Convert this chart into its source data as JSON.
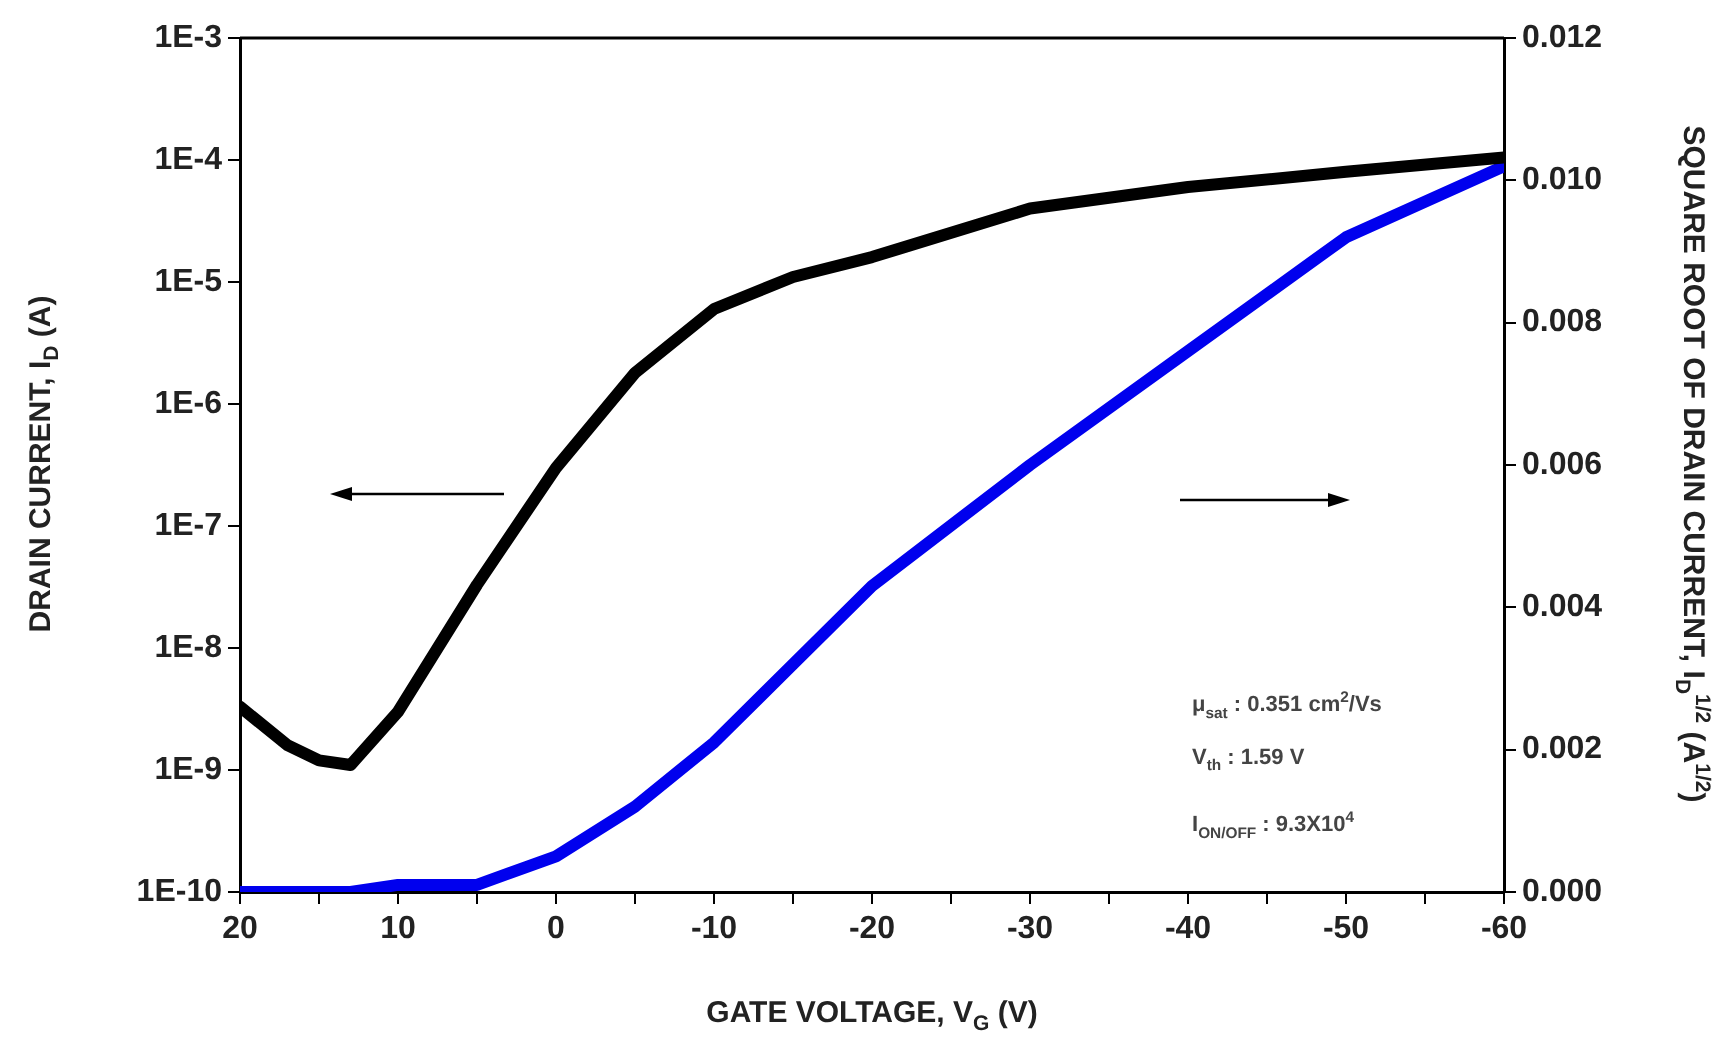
{
  "chart_data": {
    "type": "line",
    "xlabel": "GATE VOLTAGE, V$_{G}$ (V)",
    "ylabel": "DRAIN CURRENT, I$_{D}$ (A)",
    "y2label": "SQUARE ROOT OF DRAIN CURRENT, I$_{D}$$^{1/2}$ (A$^{1/2}$)",
    "annotations": [
      "μ$_{sat}$ : 0.351 cm$^{2}$/Vs",
      "V$_{th}$ : 1.59 V",
      "I$_{ON/OFF}$ : 9.3X10$^{4}$"
    ],
    "x": [
      20,
      17,
      15,
      13,
      10,
      5,
      0,
      -5,
      -10,
      -15,
      -20,
      -30,
      -40,
      -50,
      -60
    ],
    "series": [
      {
        "color": "#000000",
        "axis": "y",
        "values": [
          3.3e-09,
          1.6e-09,
          1.2e-09,
          1.1e-09,
          3e-09,
          3.3e-08,
          3e-07,
          1.8e-06,
          6e-06,
          1.1e-05,
          1.6e-05,
          4e-05,
          6e-05,
          8e-05,
          0.000105
        ]
      },
      {
        "color": "#0000ee",
        "axis": "y2",
        "values": [
          0.0,
          0.0,
          0.0,
          0.0,
          0.0001,
          0.0001,
          0.0005,
          0.0012,
          0.0021,
          0.0032,
          0.0043,
          0.006,
          0.0076,
          0.0092,
          0.0102
        ]
      }
    ],
    "xlim": [
      20,
      -60
    ],
    "xticks": [
      20,
      {
        "value": 15,
        "label": null
      },
      10,
      {
        "value": 5,
        "label": null
      },
      0,
      {
        "value": -5,
        "label": null
      },
      -10,
      {
        "value": -15,
        "label": null
      },
      -20,
      {
        "value": -25,
        "label": null
      },
      -30,
      {
        "value": -35,
        "label": null
      },
      -40,
      {
        "value": -45,
        "label": null
      },
      -50,
      {
        "value": -55,
        "label": null
      },
      -60
    ],
    "ylim": [
      1e-10,
      0.001
    ],
    "yticks": [
      {
        "value": 1e-10,
        "label": "1E-10"
      },
      {
        "value": 1e-09,
        "label": "1E-9"
      },
      {
        "value": 1e-08,
        "label": "1E-8"
      },
      {
        "value": 1e-07,
        "label": "1E-7"
      },
      {
        "value": 1e-06,
        "label": "1E-6"
      },
      {
        "value": 1e-05,
        "label": "1E-5"
      },
      {
        "value": 0.0001,
        "label": "1E-4"
      },
      {
        "value": 0.001,
        "label": "1E-3"
      }
    ],
    "y2lim": [
      0,
      0.012
    ],
    "y2ticks": [
      {
        "value": 0,
        "label": "0.000"
      },
      {
        "value": 0.002,
        "label": "0.002"
      },
      {
        "value": 0.004,
        "label": "0.004"
      },
      {
        "value": 0.006,
        "label": "0.006"
      },
      {
        "value": 0.008,
        "label": "0.008"
      },
      {
        "value": 0.01,
        "label": "0.010"
      },
      {
        "value": 0.012,
        "label": "0.012"
      }
    ],
    "log": "y",
    "grid": false,
    "legend": false,
    "marker": "none",
    "line_style": "solid"
  }
}
